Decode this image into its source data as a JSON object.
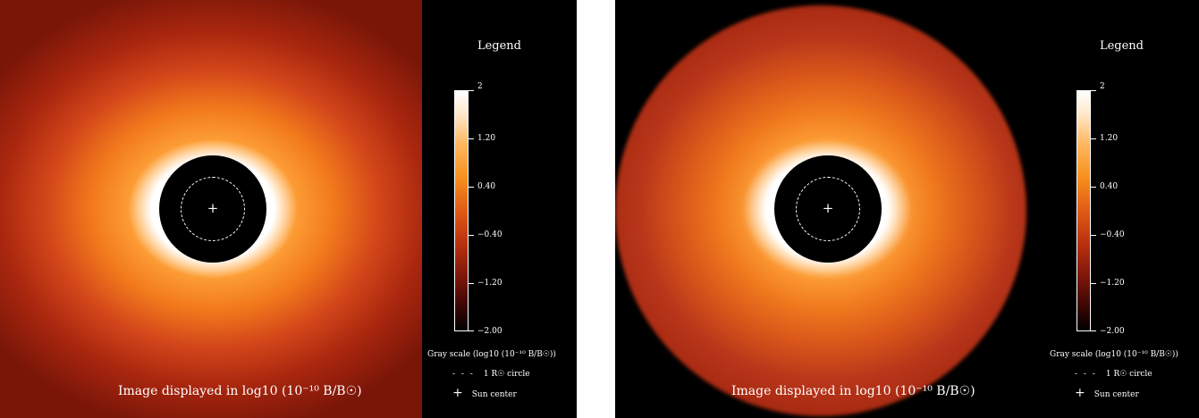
{
  "panels": [
    {
      "caption": "Image displayed in log10 (10⁻¹⁰ B/B☉)",
      "legend": {
        "title": "Legend",
        "ticks": [
          "2",
          "1.20",
          "0.40",
          "−0.40",
          "−1.20",
          "−2.00"
        ],
        "scale_label": "Gray scale (log10 (10⁻¹⁰ B/B☉))",
        "circle_key": "1 R☉ circle",
        "center_key": "Sun center"
      }
    },
    {
      "caption": "Image displayed in log10 (10⁻¹⁰ B/B☉)",
      "legend": {
        "title": "Legend",
        "ticks": [
          "2",
          "1.20",
          "0.40",
          "−0.40",
          "−1.20",
          "−2.00"
        ],
        "scale_label": "Gray scale (log10 (10⁻¹⁰ B/B☉))",
        "circle_key": "1 R☉ circle",
        "center_key": "Sun center"
      }
    }
  ],
  "colors": {
    "background": "#000000",
    "corona_bright": "#ffffff",
    "corona_mid": "#f7901e",
    "corona_outer": "#a8260e"
  }
}
